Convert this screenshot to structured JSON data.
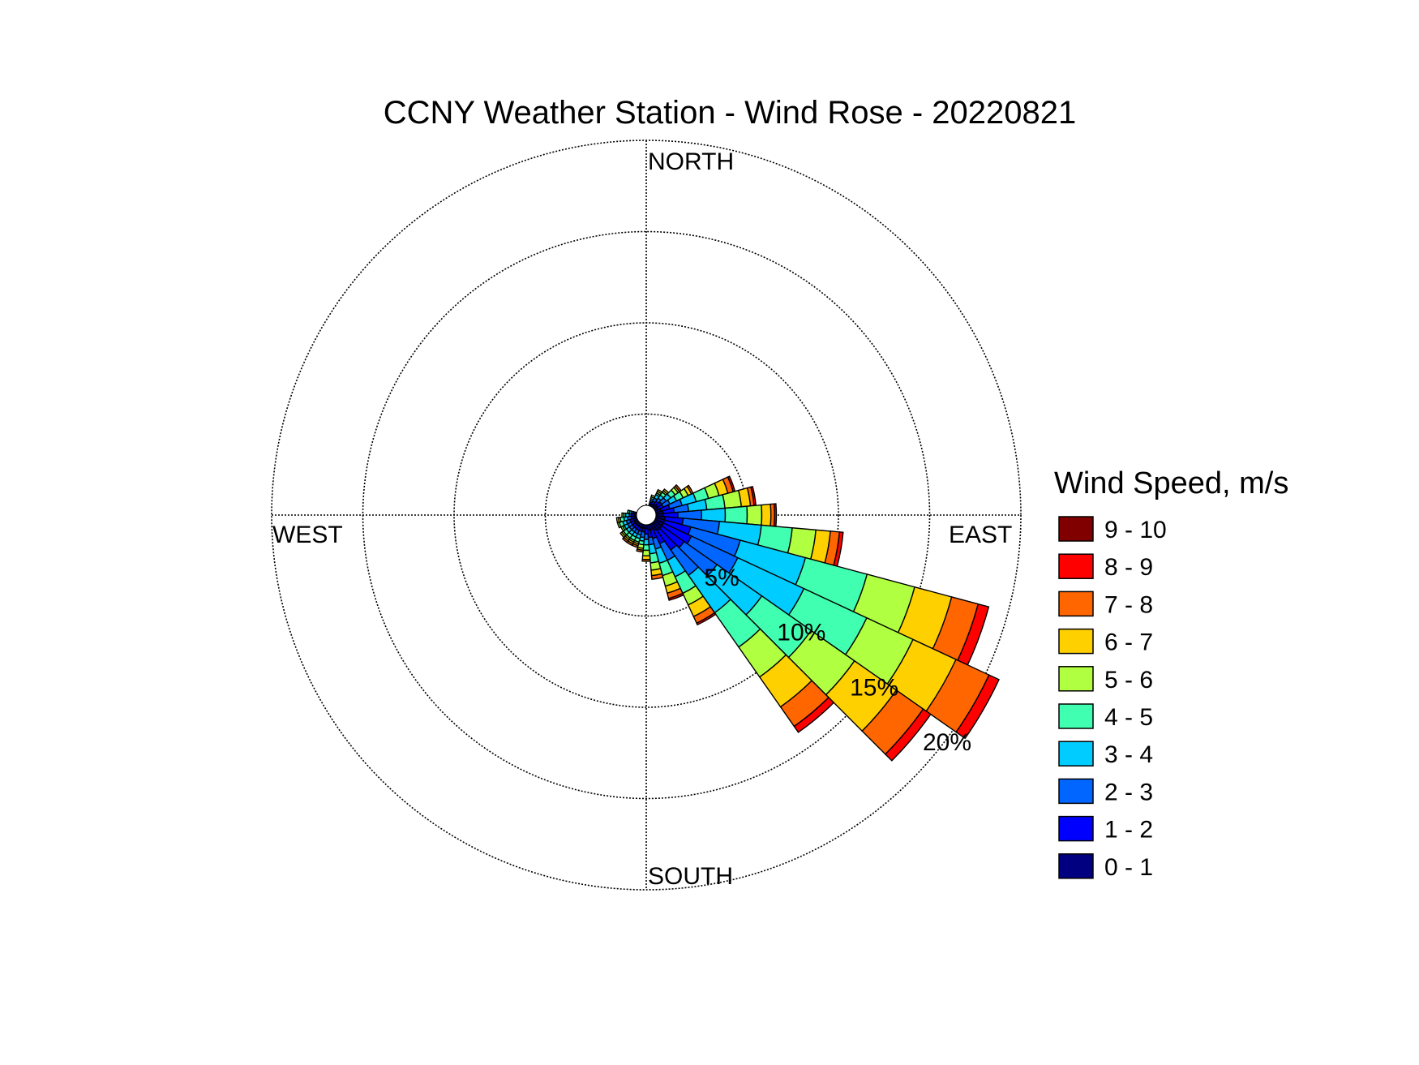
{
  "chart_data": {
    "type": "wind-rose",
    "title": "CCNY Weather Station - Wind Rose - 20220821",
    "directions": [
      "NORTH",
      "EAST",
      "SOUTH",
      "WEST"
    ],
    "radial_ticks": [
      "5%",
      "10%",
      "15%",
      "20%"
    ],
    "radial_tick_values": [
      5,
      10,
      15,
      20
    ],
    "rmax_percent": 20,
    "legend_title": "Wind Speed, m/s",
    "speed_bins": [
      {
        "label": "0 - 1",
        "color": "#000080"
      },
      {
        "label": "1 - 2",
        "color": "#0000FF"
      },
      {
        "label": "2 - 3",
        "color": "#0066FF"
      },
      {
        "label": "3 - 4",
        "color": "#00CCFF"
      },
      {
        "label": "4 - 5",
        "color": "#40FFB0"
      },
      {
        "label": "5 - 6",
        "color": "#B0FF40"
      },
      {
        "label": "6 - 7",
        "color": "#FFD000"
      },
      {
        "label": "7 - 8",
        "color": "#FF6600"
      },
      {
        "label": "8 - 9",
        "color": "#FF0000"
      },
      {
        "label": "9 - 10",
        "color": "#800000"
      }
    ],
    "sector_width_deg": 10,
    "sectors": [
      {
        "direction_deg": 80,
        "cumulative_percent": [
          0.4,
          1.0,
          1.8,
          2.8,
          3.8,
          4.7,
          5.2,
          5.4,
          5.5,
          5.5
        ]
      },
      {
        "direction_deg": 90,
        "cumulative_percent": [
          0.4,
          1.2,
          2.5,
          3.8,
          5.0,
          5.8,
          6.3,
          6.5,
          6.6,
          6.6
        ]
      },
      {
        "direction_deg": 100,
        "cumulative_percent": [
          0.5,
          1.5,
          3.5,
          5.8,
          7.5,
          8.8,
          9.6,
          10.1,
          10.3,
          10.3
        ]
      },
      {
        "direction_deg": 110,
        "cumulative_percent": [
          0.5,
          2.0,
          4.8,
          8.5,
          12.0,
          14.7,
          16.8,
          18.3,
          18.9,
          18.9
        ]
      },
      {
        "direction_deg": 120,
        "cumulative_percent": [
          0.5,
          2.2,
          5.0,
          9.0,
          12.8,
          15.6,
          18.2,
          20.2,
          20.8,
          20.8
        ]
      },
      {
        "direction_deg": 130,
        "cumulative_percent": [
          0.5,
          2.0,
          4.2,
          7.2,
          10.5,
          13.4,
          16.2,
          18.0,
          18.5,
          18.5
        ]
      },
      {
        "direction_deg": 140,
        "cumulative_percent": [
          0.5,
          1.8,
          3.5,
          6.0,
          8.3,
          10.3,
          12.3,
          13.6,
          14.0,
          14.0
        ]
      },
      {
        "direction_deg": 150,
        "cumulative_percent": [
          0.4,
          1.2,
          2.2,
          3.2,
          4.2,
          4.9,
          5.6,
          6.0,
          6.1,
          6.1
        ]
      },
      {
        "direction_deg": 160,
        "cumulative_percent": [
          0.3,
          0.8,
          1.4,
          2.2,
          2.9,
          3.5,
          3.9,
          4.2,
          4.3,
          4.3
        ]
      },
      {
        "direction_deg": 170,
        "cumulative_percent": [
          0.3,
          0.7,
          1.1,
          1.6,
          2.1,
          2.5,
          2.8,
          3.0,
          3.0,
          3.0
        ]
      },
      {
        "direction_deg": 180,
        "cumulative_percent": [
          0.2,
          0.5,
          0.8,
          1.1,
          1.4,
          1.7,
          1.9,
          2.0,
          2.0,
          2.0
        ]
      },
      {
        "direction_deg": 190,
        "cumulative_percent": [
          0.2,
          0.4,
          0.7,
          0.9,
          1.1,
          1.3,
          1.4,
          1.5,
          1.5,
          1.5
        ]
      },
      {
        "direction_deg": 200,
        "cumulative_percent": [
          0.2,
          0.4,
          0.6,
          0.8,
          1.0,
          1.1,
          1.2,
          1.3,
          1.3,
          1.3
        ]
      },
      {
        "direction_deg": 210,
        "cumulative_percent": [
          0.2,
          0.4,
          0.6,
          0.8,
          1.0,
          1.1,
          1.2,
          1.3,
          1.3,
          1.3
        ]
      },
      {
        "direction_deg": 220,
        "cumulative_percent": [
          0.2,
          0.4,
          0.6,
          0.8,
          1.0,
          1.1,
          1.2,
          1.3,
          1.3,
          1.3
        ]
      },
      {
        "direction_deg": 230,
        "cumulative_percent": [
          0.2,
          0.4,
          0.6,
          0.8,
          1.0,
          1.1,
          1.2,
          1.2,
          1.2,
          1.2
        ]
      },
      {
        "direction_deg": 240,
        "cumulative_percent": [
          0.2,
          0.4,
          0.6,
          0.8,
          0.9,
          1.0,
          1.0,
          1.0,
          1.0,
          1.0
        ]
      },
      {
        "direction_deg": 250,
        "cumulative_percent": [
          0.2,
          0.4,
          0.6,
          0.8,
          1.0,
          1.1,
          1.1,
          1.1,
          1.1,
          1.1
        ]
      },
      {
        "direction_deg": 260,
        "cumulative_percent": [
          0.1,
          0.3,
          0.5,
          0.7,
          0.9,
          1.0,
          1.1,
          1.1,
          1.1,
          1.1
        ]
      },
      {
        "direction_deg": 270,
        "cumulative_percent": [
          0.1,
          0.3,
          0.4,
          0.6,
          0.7,
          0.8,
          0.8,
          0.8,
          0.8,
          0.8
        ]
      },
      {
        "direction_deg": 280,
        "cumulative_percent": [
          0.1,
          0.2,
          0.3,
          0.4,
          0.5,
          0.5,
          0.5,
          0.5,
          0.5,
          0.5
        ]
      },
      {
        "direction_deg": 20,
        "cumulative_percent": [
          0.1,
          0.2,
          0.3,
          0.4,
          0.5,
          0.6,
          0.6,
          0.6,
          0.6,
          0.6
        ]
      },
      {
        "direction_deg": 30,
        "cumulative_percent": [
          0.1,
          0.3,
          0.5,
          0.7,
          0.8,
          0.9,
          1.0,
          1.0,
          1.0,
          1.0
        ]
      },
      {
        "direction_deg": 40,
        "cumulative_percent": [
          0.2,
          0.4,
          0.6,
          0.8,
          1.0,
          1.1,
          1.2,
          1.2,
          1.2,
          1.2
        ]
      },
      {
        "direction_deg": 50,
        "cumulative_percent": [
          0.2,
          0.5,
          0.8,
          1.1,
          1.4,
          1.6,
          1.7,
          1.8,
          1.8,
          1.8
        ]
      },
      {
        "direction_deg": 60,
        "cumulative_percent": [
          0.2,
          0.5,
          0.9,
          1.3,
          1.7,
          2.0,
          2.2,
          2.3,
          2.3,
          2.3
        ]
      },
      {
        "direction_deg": 70,
        "cumulative_percent": [
          0.3,
          0.8,
          1.5,
          2.3,
          3.0,
          3.6,
          4.1,
          4.4,
          4.5,
          4.5
        ]
      }
    ],
    "grid": true,
    "legend_position": "right"
  }
}
